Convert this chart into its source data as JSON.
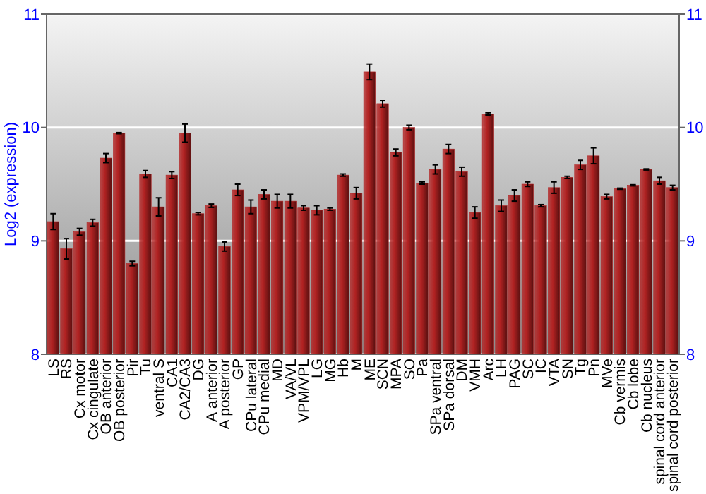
{
  "chart_data": {
    "type": "bar",
    "ylabel": "Log2 (expression)",
    "categories": [
      "LS",
      "RS",
      "Cx motor",
      "Cx cingulate",
      "OB anterior",
      "OB posterior",
      "Pir",
      "Tu",
      "ventral S",
      "CA1",
      "CA2/CA3",
      "DG",
      "A anterior",
      "A posterior",
      "GP",
      "CPu lateral",
      "CPu medial",
      "MD",
      "VA/VL",
      "VPM/VPL",
      "LG",
      "MG",
      "Hb",
      "M",
      "ME",
      "SCN",
      "MPA",
      "SO",
      "Pa",
      "SPa ventral",
      "SPa dorsal",
      "DM",
      "VMH",
      "Arc",
      "LH",
      "PAG",
      "SC",
      "IC",
      "VTA",
      "SN",
      "Tg",
      "Pn",
      "MVe",
      "Cb vermis",
      "Cb lobe",
      "Cb nucleus",
      "spinal cord anterior",
      "spinal cord posterior"
    ],
    "values": [
      9.17,
      8.93,
      9.08,
      9.16,
      9.73,
      9.95,
      8.8,
      9.59,
      9.3,
      9.58,
      9.95,
      9.24,
      9.31,
      8.95,
      9.45,
      9.3,
      9.41,
      9.35,
      9.35,
      9.29,
      9.27,
      9.28,
      9.58,
      9.42,
      10.49,
      10.21,
      9.78,
      10.0,
      9.51,
      9.63,
      9.81,
      9.61,
      9.25,
      10.12,
      9.31,
      9.4,
      9.5,
      9.31,
      9.47,
      9.56,
      9.67,
      9.75,
      9.39,
      9.46,
      9.49,
      9.63,
      9.53,
      9.47
    ],
    "errors": [
      0.07,
      0.09,
      0.03,
      0.03,
      0.04,
      0.005,
      0.02,
      0.03,
      0.08,
      0.03,
      0.08,
      0.01,
      0.015,
      0.04,
      0.05,
      0.06,
      0.04,
      0.06,
      0.06,
      0.02,
      0.04,
      0.01,
      0.01,
      0.05,
      0.07,
      0.03,
      0.03,
      0.02,
      0.01,
      0.04,
      0.04,
      0.04,
      0.05,
      0.01,
      0.05,
      0.05,
      0.02,
      0.01,
      0.05,
      0.01,
      0.04,
      0.07,
      0.02,
      0.005,
      0.005,
      0.005,
      0.03,
      0.02
    ],
    "color": "#b22222",
    "ylim": [
      8,
      11
    ],
    "yticks": [
      8,
      9,
      10,
      11
    ],
    "y2lim": [
      8,
      11
    ],
    "y2ticks": [
      8,
      9,
      10,
      11
    ],
    "grid": "y"
  }
}
